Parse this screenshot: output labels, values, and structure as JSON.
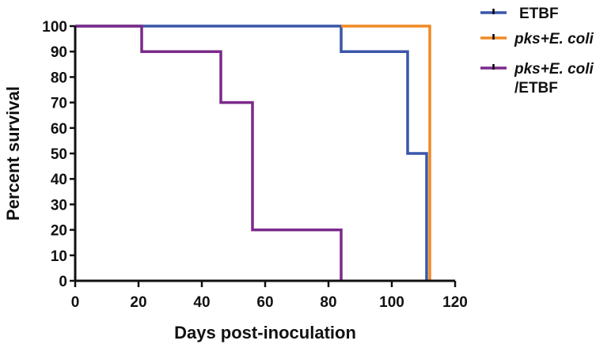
{
  "chart_data": {
    "type": "line",
    "subtype": "kaplan-meier step",
    "title": "",
    "xlabel": "Days post-inoculation",
    "ylabel": "Percent survival",
    "xlim": [
      0,
      120
    ],
    "ylim": [
      0,
      100
    ],
    "xticks": [
      "0",
      "20",
      "40",
      "60",
      "80",
      "100",
      "120"
    ],
    "yticks": [
      "0",
      "10",
      "20",
      "30",
      "40",
      "50",
      "60",
      "70",
      "80",
      "90",
      "100"
    ],
    "grid": false,
    "legend_position": "top-right",
    "series": [
      {
        "name": "ETBF",
        "color": "#3a56a8",
        "steps": [
          [
            0,
            100
          ],
          [
            84,
            100
          ],
          [
            84,
            90
          ],
          [
            105,
            90
          ],
          [
            105,
            50
          ],
          [
            111,
            50
          ],
          [
            111,
            0
          ]
        ]
      },
      {
        "name": "pks+E. coli",
        "color": "#f08a24",
        "steps": [
          [
            84,
            100
          ],
          [
            112,
            100
          ],
          [
            112,
            0
          ]
        ]
      },
      {
        "name": "pks+E. coli /ETBF",
        "legend_lines": [
          "pks+E. coli",
          "/ETBF"
        ],
        "color": "#7b2a8a",
        "steps": [
          [
            0,
            100
          ],
          [
            21,
            100
          ],
          [
            21,
            90
          ],
          [
            46,
            90
          ],
          [
            46,
            70
          ],
          [
            56,
            70
          ],
          [
            56,
            20
          ],
          [
            84,
            20
          ],
          [
            84,
            0
          ]
        ]
      }
    ]
  }
}
